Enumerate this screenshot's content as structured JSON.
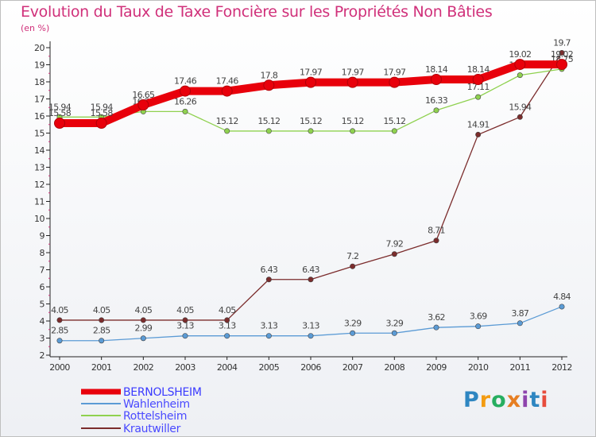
{
  "title": "Evolution du Taux de Taxe Foncière sur les Propriétés Non Bâties",
  "unit_label": "(en %)",
  "logo": {
    "text": "Proxiti",
    "letters": [
      "P",
      "r",
      "o",
      "x",
      "i",
      "t",
      "i"
    ],
    "colors": [
      "#2e86c1",
      "#f39c12",
      "#27ae60",
      "#e67e22",
      "#8e44ad",
      "#2e86c1",
      "#e74c3c"
    ]
  },
  "chart_data": {
    "type": "line",
    "title": "Evolution du Taux de Taxe Foncière sur les Propriétés Non Bâties",
    "ylabel": "(en %)",
    "xlabel": "",
    "categories": [
      "2000",
      "2001",
      "2002",
      "2003",
      "2004",
      "2005",
      "2006",
      "2007",
      "2008",
      "2009",
      "2010",
      "2011",
      "2012"
    ],
    "ylim": [
      2,
      20
    ],
    "yticks": [
      2,
      3,
      4,
      5,
      6,
      7,
      8,
      9,
      10,
      11,
      12,
      13,
      14,
      15,
      16,
      17,
      18,
      19,
      20
    ],
    "grid": false,
    "legend": "bottom-left",
    "series": [
      {
        "name": "BERNOLSHEIM",
        "color": "#e8000b",
        "emphasis": true,
        "values": [
          15.58,
          15.58,
          16.65,
          17.46,
          17.46,
          17.8,
          17.97,
          17.97,
          17.97,
          18.14,
          18.14,
          19.02,
          19.02
        ],
        "labels": [
          "15.58",
          "15.58",
          "16.65",
          "17.46",
          "17.46",
          "17.8",
          "17.97",
          "17.97",
          "17.97",
          "18.14",
          "18.14",
          "19.02",
          "19.02"
        ]
      },
      {
        "name": "Wahlenheim",
        "color": "#5b9bd5",
        "values": [
          2.85,
          2.85,
          2.99,
          3.13,
          3.13,
          3.13,
          3.13,
          3.29,
          3.29,
          3.62,
          3.69,
          3.87,
          4.84
        ],
        "labels": [
          "2.85",
          "2.85",
          "2.99",
          "3.13",
          "3.13",
          "3.13",
          "3.13",
          "3.29",
          "3.29",
          "3.62",
          "3.69",
          "3.87",
          "4.84"
        ]
      },
      {
        "name": "Rottelsheim",
        "color": "#8fd14f",
        "values": [
          15.94,
          15.94,
          16.26,
          16.26,
          15.12,
          15.12,
          15.12,
          15.12,
          15.12,
          16.33,
          17.11,
          18.39,
          18.75
        ],
        "labels": [
          "15.94",
          "15.94",
          "16.26",
          "16.26",
          "15.12",
          "15.12",
          "15.12",
          "15.12",
          "15.12",
          "16.33",
          "17.11",
          "18.39",
          "18.75"
        ]
      },
      {
        "name": "Krautwiller",
        "color": "#7b2c2c",
        "values": [
          4.05,
          4.05,
          4.05,
          4.05,
          4.05,
          6.43,
          6.43,
          7.2,
          7.92,
          8.71,
          14.91,
          15.94,
          19.7
        ],
        "labels": [
          "4.05",
          "4.05",
          "4.05",
          "4.05",
          "4.05",
          "6.43",
          "6.43",
          "7.2",
          "7.92",
          "8.71",
          "14.91",
          "15.94",
          "19.7"
        ]
      }
    ]
  }
}
